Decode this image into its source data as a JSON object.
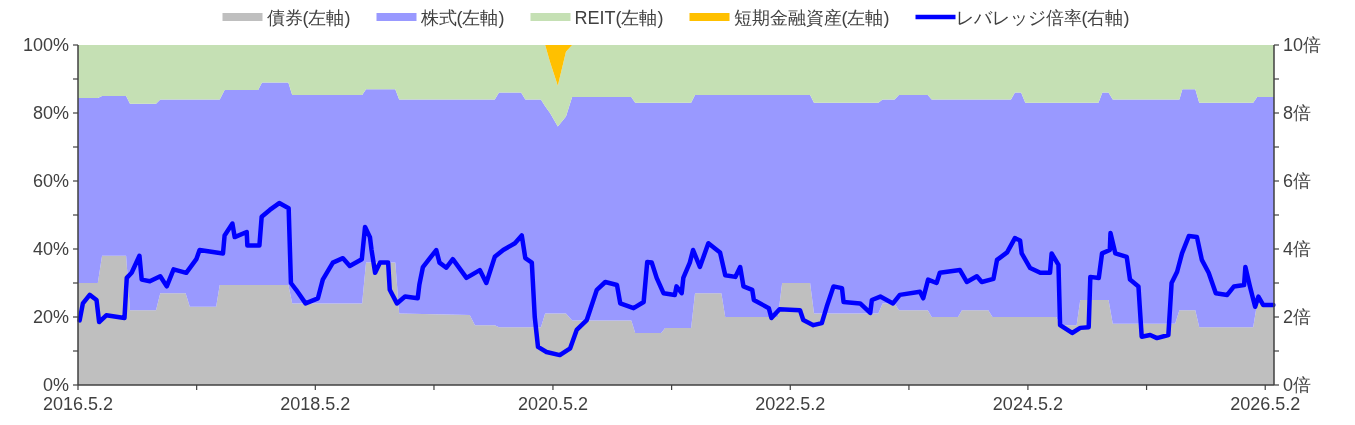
{
  "chart_data": {
    "type": "area",
    "stacked": true,
    "legend": "top",
    "x": [
      "2016-05-02",
      "2016-07-02",
      "2016-07-15",
      "2016-09-27",
      "2016-10-09",
      "2016-12-28",
      "2017-01-10",
      "2017-03-29",
      "2017-04-11",
      "2017-07-01",
      "2017-07-12",
      "2017-07-27",
      "2017-11-07",
      "2017-11-19",
      "2018-02-08",
      "2018-02-20",
      "2018-09-23",
      "2018-10-05",
      "2019-01-03",
      "2019-01-15",
      "2019-08-20",
      "2019-09-05",
      "2019-11-05",
      "2019-11-18",
      "2020-01-25",
      "2020-02-07",
      "2020-03-26",
      "2020-04-08",
      "2020-04-23",
      "2020-05-17",
      "2020-06-11",
      "2020-06-30",
      "2020-12-29",
      "2021-01-10",
      "2021-03-31",
      "2021-04-12",
      "2021-07-01",
      "2021-07-13",
      "2021-10-02",
      "2021-10-14",
      "2022-03-25",
      "2022-04-07",
      "2022-07-02",
      "2022-07-14",
      "2023-01-28",
      "2023-02-10",
      "2023-03-19",
      "2023-04-01",
      "2023-06-29",
      "2023-07-11",
      "2023-09-30",
      "2023-10-12",
      "2024-01-01",
      "2024-01-14",
      "2024-03-11",
      "2024-03-23",
      "2024-04-11",
      "2024-04-24",
      "2024-07-28",
      "2024-08-09",
      "2024-09-29",
      "2024-10-10",
      "2024-12-05",
      "2024-12-17",
      "2025-01-05",
      "2025-01-18",
      "2025-07-29",
      "2025-08-11",
      "2025-08-20",
      "2025-09-29",
      "2025-10-11",
      "2026-03-26",
      "2026-04-07",
      "2026-05-29"
    ],
    "series": [
      {
        "name": "債券(左軸)",
        "color": "#bfbfbf",
        "values": [
          30,
          30,
          38,
          38,
          22,
          22,
          27,
          27,
          23,
          23,
          29.4,
          29.4,
          29.4,
          29.4,
          29.4,
          24,
          24,
          36,
          36,
          21,
          20.6,
          17.6,
          17.6,
          17,
          17,
          17,
          17,
          21,
          21,
          21,
          21,
          19,
          19,
          15.3,
          15.3,
          16.8,
          16.8,
          27,
          27,
          20,
          20,
          30,
          30,
          21,
          21,
          24,
          24,
          22,
          22,
          20,
          20,
          22,
          22,
          20,
          20,
          20,
          20,
          20,
          20,
          17.6,
          17.6,
          25,
          25,
          25,
          25,
          18,
          18,
          22,
          22,
          22,
          17,
          17,
          24,
          24
        ]
      },
      {
        "name": "株式(左軸)",
        "color": "#9999ff",
        "values": [
          54.4,
          54.4,
          47,
          47,
          60.7,
          60.7,
          57,
          57,
          61,
          61,
          54.6,
          57.4,
          57.4,
          59.6,
          59.6,
          61.3,
          61.3,
          51,
          51,
          63,
          63.4,
          66.4,
          66.4,
          69,
          69,
          67,
          67,
          61,
          59,
          55,
          58,
          65.7,
          65.7,
          67.7,
          67.7,
          66.2,
          66.2,
          58.3,
          58.3,
          65.3,
          65.3,
          55.3,
          55.3,
          62,
          62,
          60,
          60,
          63.3,
          63.3,
          64,
          64,
          62,
          62,
          64,
          64,
          66,
          66,
          63,
          63,
          65.4,
          65.4,
          58,
          58,
          61,
          61,
          66,
          66,
          62,
          65,
          65,
          66,
          66,
          60.7,
          60.7
        ]
      },
      {
        "name": "REIT(左軸)",
        "color": "#c5e0b4",
        "values": [
          15.6,
          15.6,
          15,
          15,
          17.3,
          17.3,
          16,
          16,
          16,
          16,
          16,
          13.2,
          13.2,
          11,
          11,
          14.7,
          14.7,
          13,
          13,
          16,
          16,
          16,
          16,
          14,
          14,
          16,
          16,
          18,
          15,
          12,
          19,
          15.3,
          15.3,
          17,
          17,
          17,
          17,
          14.7,
          14.7,
          14.7,
          14.7,
          14.7,
          14.7,
          17,
          17,
          16,
          16,
          14.7,
          14.7,
          16,
          16,
          16,
          16,
          16,
          16,
          14,
          14,
          17,
          17,
          17,
          17,
          17,
          17,
          14,
          14,
          16,
          16,
          16,
          13,
          13,
          17,
          17,
          15.3,
          15.3
        ]
      },
      {
        "name": "短期金融資産(左軸)",
        "color": "#ffc000",
        "values": [
          0,
          0,
          0,
          0,
          0,
          0,
          0,
          0,
          0,
          0,
          0,
          0,
          0,
          0,
          0,
          0,
          0,
          0,
          0,
          0,
          0,
          0,
          0,
          0,
          0,
          0,
          0,
          0,
          5,
          12,
          2,
          0,
          0,
          0,
          0,
          0,
          0,
          0,
          0,
          0,
          0,
          0,
          0,
          0,
          0,
          0,
          0,
          0,
          0,
          0,
          0,
          0,
          0,
          0,
          0,
          0,
          0,
          0,
          0,
          0,
          0,
          0,
          0,
          0,
          0,
          0,
          0,
          0,
          0,
          0,
          0,
          0,
          0,
          0
        ]
      },
      {
        "name": "レバレッジ倍率(右軸)",
        "type": "line",
        "axis": "y2",
        "color": "#0000ff",
        "x": [
          "2016-05-07",
          "2016-05-17",
          "2016-06-07",
          "2016-06-28",
          "2016-07-06",
          "2016-07-28",
          "2016-09-22",
          "2016-09-29",
          "2016-10-14",
          "2016-11-07",
          "2016-11-14",
          "2016-12-09",
          "2017-01-10",
          "2017-01-30",
          "2017-02-20",
          "2017-03-31",
          "2017-05-01",
          "2017-05-11",
          "2017-07-22",
          "2017-07-27",
          "2017-08-20",
          "2017-08-27",
          "2017-10-03",
          "2017-10-05",
          "2017-11-11",
          "2017-11-18",
          "2017-12-13",
          "2018-01-11",
          "2018-02-09",
          "2018-02-16",
          "2018-03-04",
          "2018-04-02",
          "2018-05-10",
          "2018-05-25",
          "2018-06-25",
          "2018-07-26",
          "2018-08-16",
          "2018-09-22",
          "2018-10-02",
          "2018-10-17",
          "2018-10-22",
          "2018-11-02",
          "2018-11-17",
          "2018-12-12",
          "2018-12-17",
          "2019-01-08",
          "2019-02-02",
          "2019-03-13",
          "2019-03-18",
          "2019-03-29",
          "2019-05-09",
          "2019-05-19",
          "2019-06-09",
          "2019-06-29",
          "2019-08-10",
          "2019-09-20",
          "2019-10-10",
          "2019-11-05",
          "2019-12-01",
          "2020-01-06",
          "2020-01-27",
          "2020-02-07",
          "2020-02-27",
          "2020-03-07",
          "2020-03-17",
          "2020-04-12",
          "2020-05-23",
          "2020-06-24",
          "2020-07-14",
          "2020-08-14",
          "2020-09-14",
          "2020-10-10",
          "2020-11-15",
          "2020-11-25",
          "2021-01-05",
          "2021-02-05",
          "2021-02-16",
          "2021-03-02",
          "2021-03-17",
          "2021-04-07",
          "2021-05-12",
          "2021-05-17",
          "2021-06-02",
          "2021-06-07",
          "2021-06-27",
          "2021-07-07",
          "2021-07-28",
          "2021-08-23",
          "2021-09-28",
          "2021-10-14",
          "2021-11-14",
          "2021-11-29",
          "2021-12-09",
          "2022-01-05",
          "2022-01-10",
          "2022-02-25",
          "2022-03-05",
          "2022-03-30",
          "2022-06-01",
          "2022-06-11",
          "2022-07-12",
          "2022-08-07",
          "2022-08-22",
          "2022-09-12",
          "2022-10-08",
          "2022-10-13",
          "2022-12-03",
          "2023-01-03",
          "2023-01-08",
          "2023-02-03",
          "2023-03-14",
          "2023-04-04",
          "2023-06-05",
          "2023-06-15",
          "2023-06-30",
          "2023-07-26",
          "2023-08-05",
          "2023-10-06",
          "2023-10-27",
          "2023-11-27",
          "2023-12-12",
          "2024-01-17",
          "2024-01-28",
          "2024-02-28",
          "2024-03-23",
          "2024-04-08",
          "2024-04-13",
          "2024-05-09",
          "2024-06-09",
          "2024-07-09",
          "2024-07-14",
          "2024-08-04",
          "2024-08-09",
          "2024-09-15",
          "2024-10-10",
          "2024-11-05",
          "2024-11-10",
          "2024-12-06",
          "2024-12-16",
          "2025-01-09",
          "2025-01-11",
          "2025-01-26",
          "2025-03-02",
          "2025-03-12",
          "2025-04-07",
          "2025-04-17",
          "2025-05-13",
          "2025-06-03",
          "2025-07-08",
          "2025-07-18",
          "2025-08-04",
          "2025-08-19",
          "2025-09-09",
          "2025-10-04",
          "2025-10-19",
          "2025-11-09",
          "2025-12-01",
          "2026-01-05",
          "2026-01-26",
          "2026-02-26",
          "2026-03-02",
          "2026-03-16",
          "2026-04-01",
          "2026-04-11",
          "2026-04-26",
          "2026-05-27"
        ],
        "values": [
          1.9,
          2.4,
          2.65,
          2.5,
          1.85,
          2.05,
          1.97,
          3.15,
          3.3,
          3.8,
          3.1,
          3.05,
          3.2,
          2.9,
          3.4,
          3.3,
          3.7,
          3.97,
          3.87,
          4.4,
          4.75,
          4.35,
          4.5,
          4.1,
          4.1,
          4.95,
          5.15,
          5.35,
          5.2,
          3.0,
          2.8,
          2.4,
          2.55,
          3.1,
          3.6,
          3.73,
          3.5,
          3.7,
          4.65,
          4.35,
          3.97,
          3.3,
          3.6,
          3.6,
          2.8,
          2.4,
          2.6,
          2.55,
          2.95,
          3.47,
          3.97,
          3.6,
          3.45,
          3.7,
          3.15,
          3.38,
          3.0,
          3.77,
          3.97,
          4.17,
          4.4,
          3.73,
          3.6,
          2.0,
          1.12,
          0.97,
          0.88,
          1.08,
          1.62,
          1.91,
          2.8,
          3.03,
          2.94,
          2.4,
          2.26,
          2.44,
          3.62,
          3.6,
          3.15,
          2.7,
          2.65,
          2.9,
          2.7,
          3.15,
          3.6,
          3.97,
          3.47,
          4.17,
          3.9,
          3.23,
          3.18,
          3.47,
          2.9,
          2.8,
          2.5,
          2.26,
          1.97,
          2.23,
          2.2,
          1.91,
          1.76,
          1.82,
          2.3,
          2.9,
          2.85,
          2.44,
          2.4,
          2.12,
          2.5,
          2.6,
          2.4,
          2.65,
          2.74,
          2.55,
          3.1,
          3.0,
          3.3,
          3.38,
          3.03,
          3.2,
          3.03,
          3.12,
          3.68,
          3.9,
          4.32,
          4.25,
          3.87,
          3.44,
          3.3,
          3.3,
          3.87,
          3.53,
          1.76,
          1.53,
          1.68,
          1.7,
          3.18,
          3.15,
          3.87,
          3.97,
          4.47,
          3.87,
          3.77,
          3.1,
          2.9,
          1.42,
          1.47,
          1.38,
          1.47,
          3.0,
          3.33,
          3.87,
          4.38,
          4.35,
          3.68,
          3.3,
          2.7,
          2.65,
          2.9,
          2.94,
          3.47,
          2.9,
          2.3,
          2.6,
          2.35,
          2.35
        ]
      }
    ],
    "xlim": [
      "2016-05-02",
      "2026-05-29"
    ],
    "xticks": [
      {
        "value": "2016-05-02",
        "label": "2016.5.2"
      },
      {
        "value": "2017-05-02",
        "label": null
      },
      {
        "value": "2018-05-02",
        "label": "2018.5.2"
      },
      {
        "value": "2019-05-02",
        "label": null
      },
      {
        "value": "2020-05-02",
        "label": "2020.5.2"
      },
      {
        "value": "2021-05-02",
        "label": null
      },
      {
        "value": "2022-05-02",
        "label": "2022.5.2"
      },
      {
        "value": "2023-05-02",
        "label": null
      },
      {
        "value": "2024-05-02",
        "label": "2024.5.2"
      },
      {
        "value": "2025-05-02",
        "label": null
      },
      {
        "value": "2026-05-02",
        "label": "2026.5.2"
      }
    ],
    "ylim": [
      0,
      100
    ],
    "yticks": [
      {
        "value": 0,
        "label": "0%"
      },
      {
        "value": 10,
        "label": null
      },
      {
        "value": 20,
        "label": "20%"
      },
      {
        "value": 30,
        "label": null
      },
      {
        "value": 40,
        "label": "40%"
      },
      {
        "value": 50,
        "label": null
      },
      {
        "value": 60,
        "label": "60%"
      },
      {
        "value": 70,
        "label": null
      },
      {
        "value": 80,
        "label": "80%"
      },
      {
        "value": 90,
        "label": null
      },
      {
        "value": 100,
        "label": "100%"
      }
    ],
    "y2lim": [
      0,
      10
    ],
    "y2ticks": [
      {
        "value": 0,
        "label": "0倍"
      },
      {
        "value": 1,
        "label": null
      },
      {
        "value": 2,
        "label": "2倍"
      },
      {
        "value": 3,
        "label": null
      },
      {
        "value": 4,
        "label": "4倍"
      },
      {
        "value": 5,
        "label": null
      },
      {
        "value": 6,
        "label": "6倍"
      },
      {
        "value": 7,
        "label": null
      },
      {
        "value": 8,
        "label": "8倍"
      },
      {
        "value": 9,
        "label": null
      },
      {
        "value": 10,
        "label": "10倍"
      }
    ]
  }
}
